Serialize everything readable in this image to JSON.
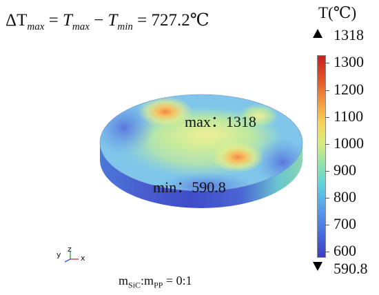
{
  "formula": {
    "delta": "ΔT",
    "sub_max": "max",
    "eq": " = ",
    "t1": "T",
    "minus": " − ",
    "t2": "T",
    "sub_min": "min",
    "value": " = 727.2℃"
  },
  "scale": {
    "title": "T(℃)",
    "max_label": "1318",
    "min_label": "590.8",
    "ticks": [
      "1300",
      "1200",
      "1100",
      "1000",
      "900",
      "800",
      "700",
      "600"
    ]
  },
  "annotations": {
    "max": "max：1318",
    "min": "min：590.8"
  },
  "axes": {
    "y": "y",
    "z": "z",
    "x": "x"
  },
  "ratio": {
    "m1": "m",
    "s1": "SiC",
    "colon": ":",
    "m2": "m",
    "s2": "PP",
    "value": " = 0:1"
  },
  "colors": {
    "hot": "#e0412a",
    "cold": "#3b3bc0"
  }
}
